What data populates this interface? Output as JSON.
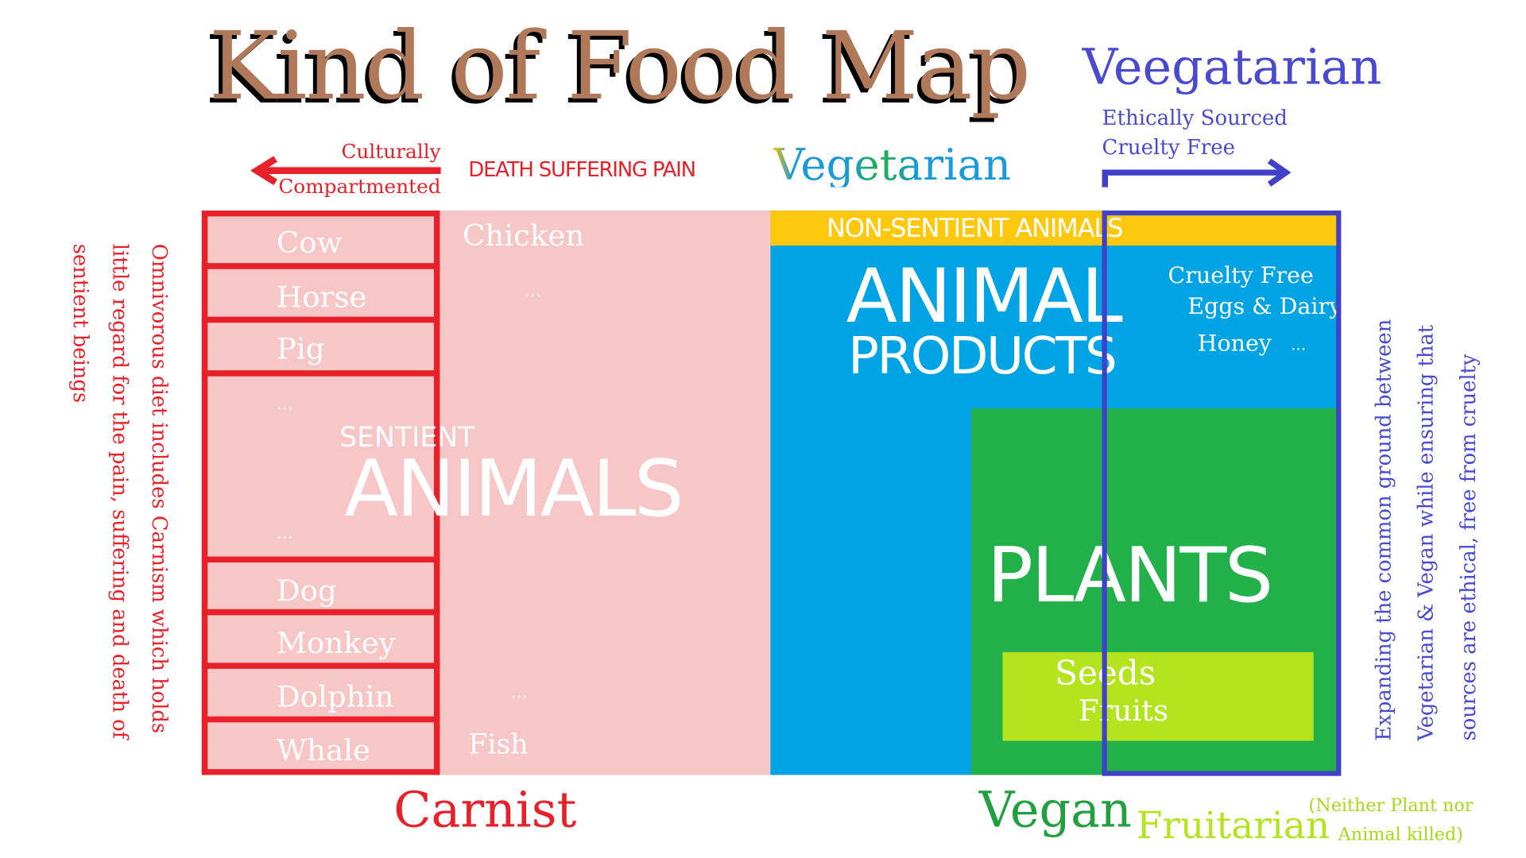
{
  "title": "Kind of Food Map",
  "veegatarian": {
    "heading": "Veegatarian",
    "lines": [
      "Ethically Sourced",
      "Cruelty Free"
    ]
  },
  "carnist_arrow": {
    "line1": "Culturally",
    "line2": "Compartmented"
  },
  "death_label": "DEATH SUFFERING PAIN",
  "vegetarian_label": "Vegetarian",
  "sentient": {
    "label_small": "SENTIENT",
    "label_big": "ANIMALS",
    "rows": [
      "Cow",
      "Horse",
      "Pig",
      "...",
      "...",
      "Dog",
      "Monkey",
      "Dolphin",
      "Whale"
    ],
    "right_column": [
      "Chicken",
      "...",
      "...",
      "Fish"
    ]
  },
  "non_sentient_label": "NON-SENTIENT ANIMALS",
  "animal_products": {
    "line1": "ANIMAL",
    "line2": "PRODUCTS",
    "items": [
      "Cruelty Free",
      "Eggs & Dairy",
      "Honey",
      "..."
    ]
  },
  "plants": {
    "label": "PLANTS",
    "seeds": "Seeds",
    "fruits": "Fruits"
  },
  "bottom": {
    "carnist": "Carnist",
    "vegan": "Vegan",
    "fruitarian": "Fruitarian",
    "note1": "(Neither Plant nor",
    "note2": "Animal killed)"
  },
  "left_note": [
    "Omnivorous diet includes Carnism which holds",
    "little regard for the pain, suffering and death of",
    "sentient beings"
  ],
  "right_note": [
    "Expanding the common ground between",
    "Vegetarian & Vegan while ensuring that",
    "sources are ethical, free from cruelty"
  ],
  "colors": {
    "title": "#b07a5a",
    "red": "#e8202a",
    "pink": "#f7c6c7",
    "blue": "#00a3e4",
    "yellow": "#fec80f",
    "green": "#22b04b",
    "lime": "#b4e41e",
    "purple": "#4040c8"
  }
}
